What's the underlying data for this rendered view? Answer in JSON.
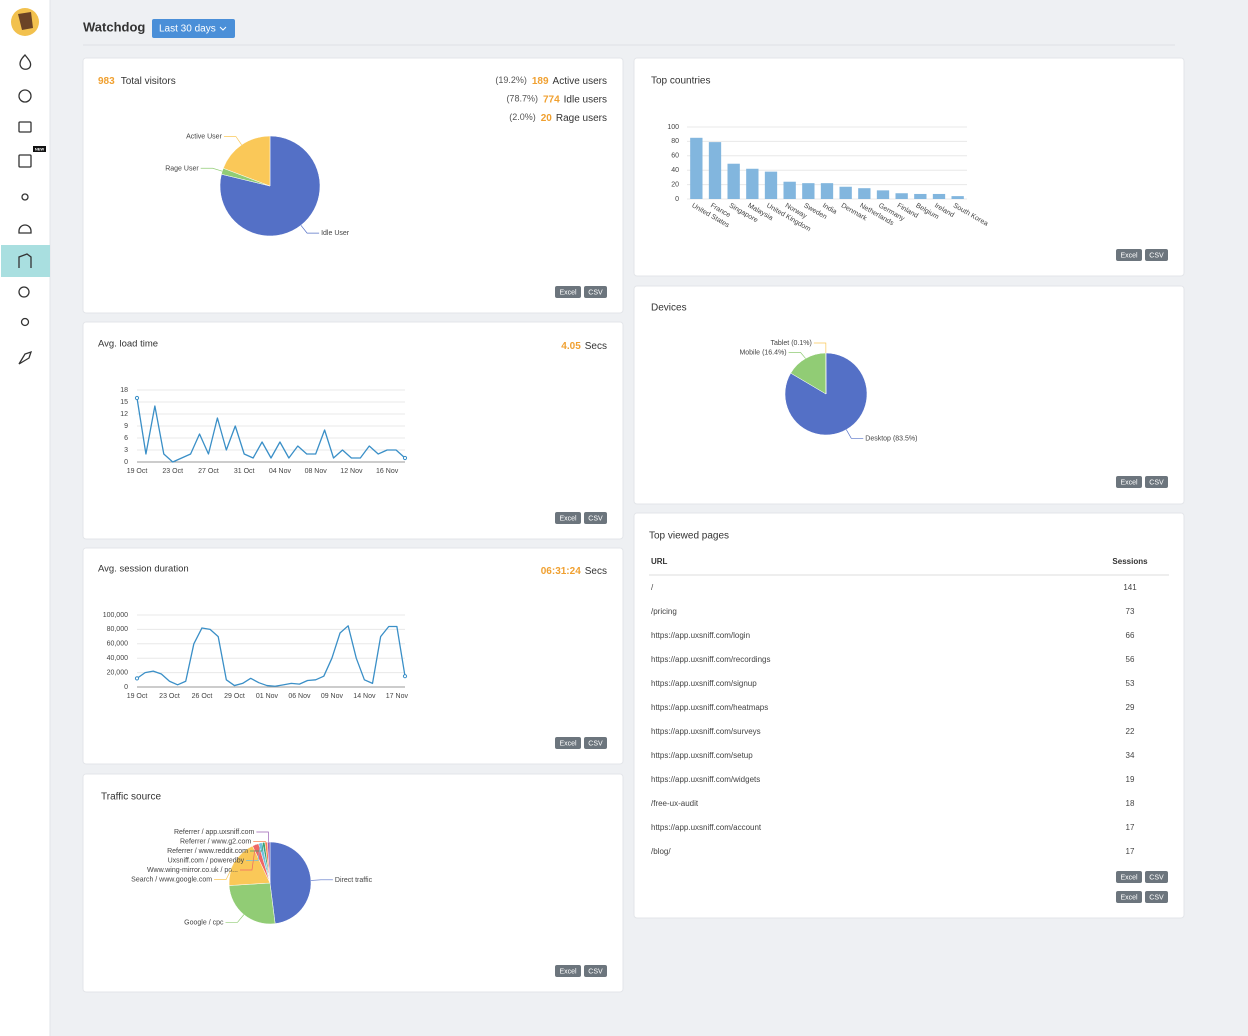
{
  "sidebar": {
    "badge": "NEW"
  },
  "header": {
    "title": "Watchdog",
    "range_button": "Last 30 days"
  },
  "buttons": {
    "excel": "Excel",
    "csv": "CSV"
  },
  "visitors": {
    "total": 983,
    "label": "Total visitors",
    "stats": [
      {
        "share": "(19.2%)",
        "count": 189,
        "label": "Active users"
      },
      {
        "share": "(78.7%)",
        "count": 774,
        "label": "Idle users"
      },
      {
        "share": "(2.0%)",
        "count": 20,
        "label": "Rage users"
      }
    ]
  },
  "load_time": {
    "value": "4.05",
    "unit": "Secs"
  },
  "session_duration": {
    "value": "06:31:24",
    "unit": "Secs"
  },
  "chart_data": [
    {
      "type": "pie",
      "categories": [
        "Idle User",
        "Rage User",
        "Active User"
      ],
      "values": [
        78.7,
        2.0,
        19.2
      ],
      "colors": [
        "#5470c6",
        "#91cc75",
        "#fac858"
      ]
    },
    {
      "type": "line",
      "title": "Avg. load time",
      "color": "#3a8fc7",
      "categories": [
        "19 Oct",
        null,
        null,
        null,
        "23 Oct",
        null,
        null,
        null,
        "27 Oct",
        null,
        null,
        null,
        "31 Oct",
        null,
        null,
        null,
        "04 Nov",
        null,
        null,
        null,
        "08 Nov",
        null,
        null,
        null,
        "12 Nov",
        null,
        null,
        null,
        "16 Nov",
        null,
        null
      ],
      "values": [
        16,
        2,
        14,
        2,
        0,
        1,
        2,
        7,
        2,
        11,
        3,
        9,
        2,
        1,
        5,
        1,
        5,
        1,
        4,
        2,
        2,
        8,
        1,
        3,
        1,
        1,
        4,
        2,
        3,
        3,
        1
      ],
      "ylim": [
        0,
        18
      ],
      "yticks": [
        0,
        3,
        6,
        9,
        12,
        15,
        18
      ],
      "grid": true
    },
    {
      "type": "line",
      "title": "Avg. session duration",
      "color": "#3a8fc7",
      "categories": [
        "19 Oct",
        null,
        null,
        null,
        "23 Oct",
        null,
        null,
        null,
        "26 Oct",
        null,
        null,
        null,
        "29 Oct",
        null,
        null,
        null,
        "01 Nov",
        null,
        null,
        null,
        "06 Nov",
        null,
        null,
        null,
        "09 Nov",
        null,
        null,
        null,
        "14 Nov",
        null,
        null,
        null,
        "17 Nov",
        null
      ],
      "values": [
        12000,
        20000,
        22000,
        18000,
        8000,
        3000,
        8000,
        60000,
        82000,
        80000,
        70000,
        10000,
        2000,
        5000,
        12000,
        6000,
        2000,
        1000,
        3000,
        5000,
        4000,
        9000,
        10000,
        15000,
        40000,
        75000,
        85000,
        40000,
        10000,
        5000,
        70000,
        84000,
        84000,
        15000
      ],
      "ylim": [
        0,
        100000
      ],
      "yticks": [
        0,
        {
          "value": 20000,
          "label": "20,000"
        },
        {
          "value": 40000,
          "label": "40,000"
        },
        {
          "value": 60000,
          "label": "60,000"
        },
        {
          "value": 80000,
          "label": "80,000"
        },
        {
          "value": 100000,
          "label": "100,000"
        }
      ],
      "grid": true
    },
    {
      "type": "bar",
      "title": "Top countries",
      "color": "#82b6de",
      "categories": [
        "United States",
        "France",
        "Singapore",
        "Malaysia",
        "United Kingdom",
        "Norway",
        "Sweden",
        "India",
        "Denmark",
        "Netherlands",
        "Germany",
        "Finland",
        "Belgium",
        "Ireland",
        "South Korea"
      ],
      "values": [
        85,
        79,
        49,
        42,
        38,
        24,
        22,
        22,
        17,
        15,
        12,
        8,
        7,
        7,
        4
      ],
      "ylim": [
        0,
        100
      ],
      "yticks": [
        0,
        20,
        40,
        60,
        80,
        100
      ],
      "grid": true
    },
    {
      "type": "pie",
      "title": "Devices",
      "categories": [
        "Desktop",
        "Mobile",
        "Tablet"
      ],
      "values": [
        83.5,
        16.4,
        0.1
      ],
      "value_labels": [
        "(83.5%)",
        "(16.4%)",
        "(0.1%)"
      ],
      "colors": [
        "#5470c6",
        "#91cc75",
        "#fac858"
      ]
    },
    {
      "type": "pie",
      "title": "Traffic source",
      "categories": [
        "Direct traffic",
        "Google / cpc",
        "Search / www.google.com",
        "Www.wing-mirror.co.uk / po...",
        "Uxsniff.com / poweredby",
        "Referrer / www.reddit.com",
        "Referrer / www.g2.com",
        "Referrer / app.uxsniff.com"
      ],
      "values": [
        48,
        26,
        19,
        2.5,
        1.5,
        1,
        1,
        1
      ],
      "colors": [
        "#5470c6",
        "#91cc75",
        "#fac858",
        "#ee6666",
        "#73c0de",
        "#3ba272",
        "#fc8452",
        "#9a60b4"
      ]
    }
  ],
  "table": {
    "title": "Top viewed pages",
    "headers": [
      "URL",
      "Sessions"
    ],
    "rows": [
      [
        "/",
        141
      ],
      [
        "/pricing",
        73
      ],
      [
        "https://app.uxsniff.com/login",
        66
      ],
      [
        "https://app.uxsniff.com/recordings",
        56
      ],
      [
        "https://app.uxsniff.com/signup",
        53
      ],
      [
        "https://app.uxsniff.com/heatmaps",
        29
      ],
      [
        "https://app.uxsniff.com/surveys",
        22
      ],
      [
        "https://app.uxsniff.com/setup",
        34
      ],
      [
        "https://app.uxsniff.com/widgets",
        19
      ],
      [
        "/free-ux-audit",
        18
      ],
      [
        "https://app.uxsniff.com/account",
        17
      ],
      [
        "/blog/",
        17
      ]
    ]
  }
}
